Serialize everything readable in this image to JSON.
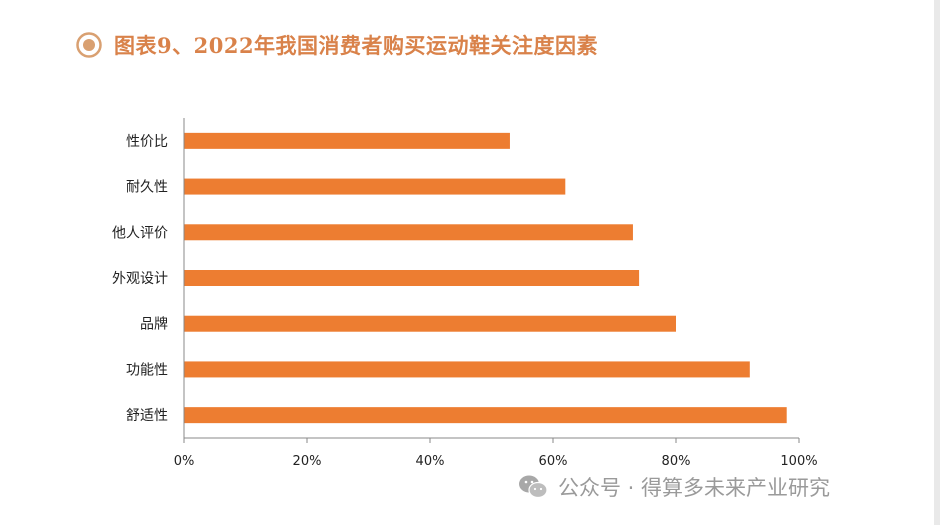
{
  "header": {
    "title": "图表9、2022年我国消费者购买运动鞋关注度因素"
  },
  "watermark": {
    "text": "公众号 · 得算多未来产业研究"
  },
  "colors": {
    "bar": "#ed7d31",
    "title": "#d9824a",
    "axis": "#888888"
  },
  "chart_data": {
    "type": "bar",
    "orientation": "horizontal",
    "title": "",
    "xlabel": "",
    "ylabel": "",
    "categories": [
      "性价比",
      "耐久性",
      "他人评价",
      "外观设计",
      "品牌",
      "功能性",
      "舒适性"
    ],
    "values": [
      0.53,
      0.62,
      0.73,
      0.74,
      0.8,
      0.92,
      0.98
    ],
    "xlim": [
      0,
      1
    ],
    "ticks": [
      0,
      0.2,
      0.4,
      0.6,
      0.8,
      1.0
    ],
    "tick_labels": [
      "0%",
      "20%",
      "40%",
      "60%",
      "80%",
      "100%"
    ],
    "grid": false,
    "legend": "none"
  }
}
